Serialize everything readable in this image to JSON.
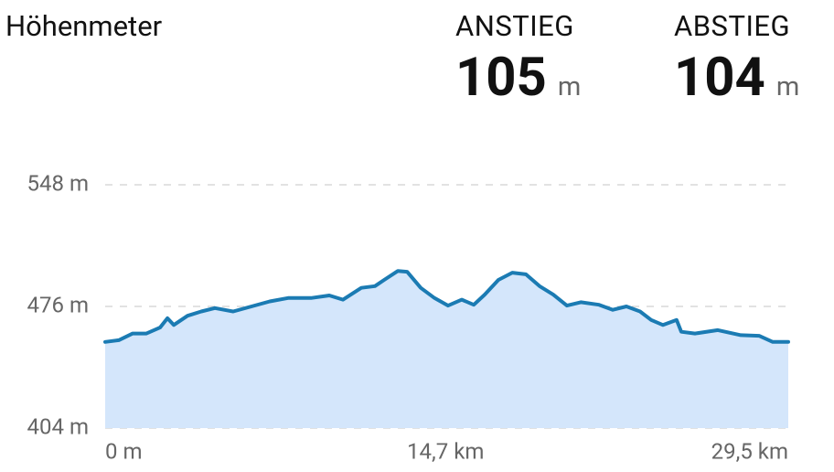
{
  "header": {
    "title": "Höhenmeter",
    "ascent": {
      "label": "ANSTIEG",
      "value": 105,
      "unit": "m"
    },
    "descent": {
      "label": "ABSTIEG",
      "value": 104,
      "unit": "m"
    }
  },
  "chart_data": {
    "type": "area",
    "x": [
      0,
      0.59,
      1.19,
      1.78,
      2.37,
      2.69,
      2.96,
      3.56,
      4.15,
      4.74,
      5.53,
      6.32,
      7.11,
      7.9,
      8.89,
      9.68,
      10.27,
      11.06,
      11.65,
      12.05,
      12.64,
      13.04,
      13.63,
      14.22,
      14.81,
      15.4,
      15.92,
      16.39,
      16.98,
      17.58,
      18.17,
      18.76,
      19.35,
      19.94,
      20.54,
      21.33,
      21.92,
      22.51,
      23.1,
      23.58,
      24.09,
      24.68,
      24.88,
      25.47,
      26.46,
      27.45,
      28.24,
      28.83,
      29.5
    ],
    "values": [
      455,
      456,
      460,
      460,
      463.5,
      469,
      465,
      470.5,
      473,
      475,
      473,
      476,
      479,
      481,
      481,
      482.5,
      480,
      487,
      488,
      491.7,
      497,
      496.5,
      487,
      481,
      476.5,
      480,
      477,
      483,
      491.7,
      496,
      495,
      488,
      483,
      476.5,
      478.5,
      477,
      474,
      476,
      473,
      468,
      465,
      468,
      461,
      460,
      462,
      459,
      458.6,
      455,
      455
    ],
    "color": "#1b7bb3",
    "fill_color": "#d4e6fb",
    "xlim": [
      0,
      29.5
    ],
    "xticks": [
      {
        "value": 0,
        "label": "0 m"
      },
      {
        "value": 14.7,
        "label": "14,7 km"
      },
      {
        "value": 29.5,
        "label": "29,5 km"
      }
    ],
    "ylim": [
      404,
      548
    ],
    "yticks": [
      {
        "value": 404,
        "label": "404 m"
      },
      {
        "value": 476,
        "label": "476 m"
      },
      {
        "value": 548,
        "label": "548 m"
      }
    ],
    "grid": true
  }
}
